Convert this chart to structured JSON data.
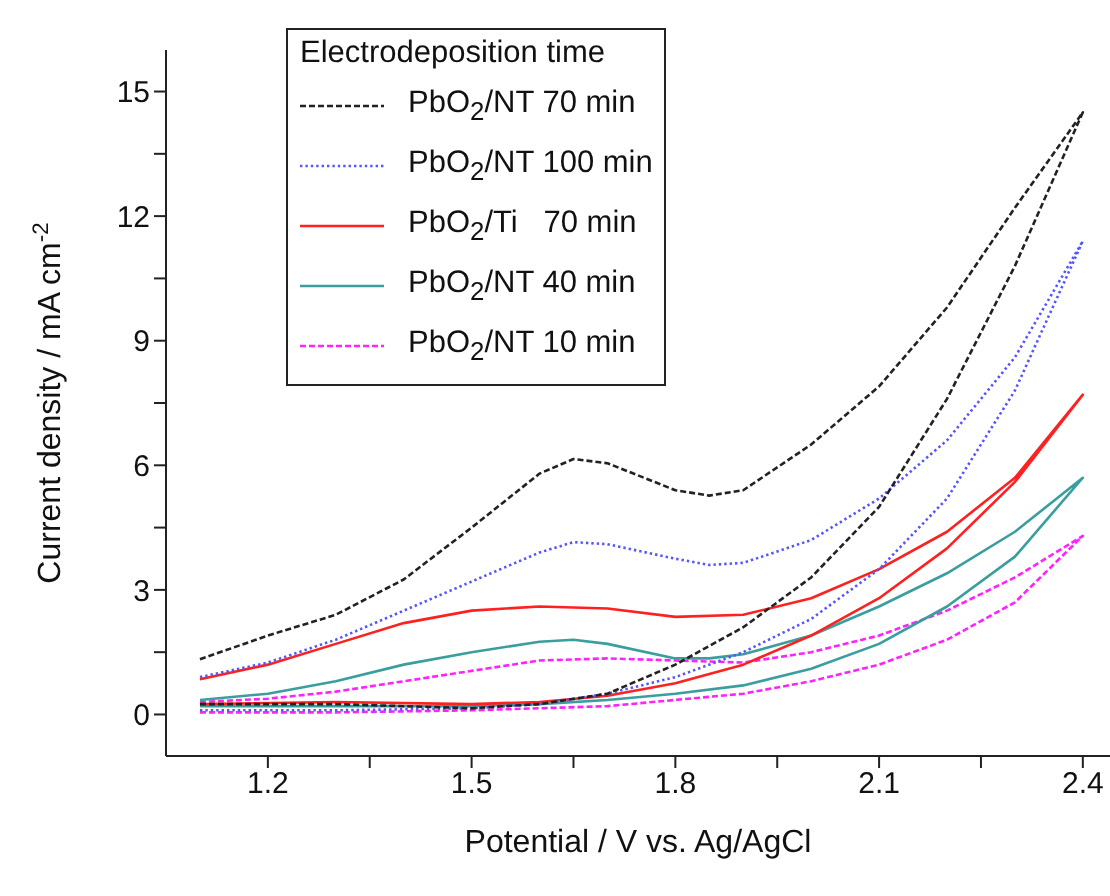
{
  "chart_data": {
    "type": "line",
    "xlabel": "Potential / V vs. Ag/AgCl",
    "ylabel": "Current density / mA cm$^{-2}$",
    "legend_title": "Electrodeposition time",
    "legend": "top left",
    "grid": false,
    "marker": "none",
    "xlim": [
      1.05,
      2.44
    ],
    "xticks": [
      1.2,
      {
        "value": 1.35,
        "label": null
      },
      1.5,
      {
        "value": 1.65,
        "label": null
      },
      1.8,
      {
        "value": 1.95,
        "label": null
      },
      2.1,
      {
        "value": 2.25,
        "label": null
      },
      2.4
    ],
    "ylim": [
      -1,
      16
    ],
    "yticks": [
      0,
      {
        "value": 1.5,
        "label": null
      },
      3,
      {
        "value": 4.5,
        "label": null
      },
      6,
      {
        "value": 7.5,
        "label": null
      },
      9,
      {
        "value": 10.5,
        "label": null
      },
      12,
      {
        "value": 13.5,
        "label": null
      },
      15
    ],
    "series": [
      {
        "name": "PbO$_{2}$/NT 70 min",
        "color": "#222222",
        "line_style": "dashed",
        "x": [
          1.1,
          1.3,
          1.5,
          1.6,
          1.7,
          1.8,
          1.9,
          2.0,
          2.1,
          2.2,
          2.3,
          2.4,
          2.3,
          2.2,
          2.1,
          2.0,
          1.9,
          1.85,
          1.8,
          1.7,
          1.65,
          1.6,
          1.5,
          1.4,
          1.3,
          1.2,
          1.1
        ],
        "values": [
          0.25,
          0.25,
          0.15,
          0.25,
          0.5,
          1.2,
          2.1,
          3.3,
          5.0,
          7.6,
          10.8,
          14.5,
          12.2,
          9.8,
          7.9,
          6.5,
          5.4,
          5.27,
          5.4,
          6.05,
          6.15,
          5.8,
          4.5,
          3.25,
          2.4,
          1.9,
          1.33
        ]
      },
      {
        "name": "PbO$_{2}$/NT 100 min",
        "color": "#5555ff",
        "line_style": "dotted",
        "x": [
          1.1,
          1.3,
          1.5,
          1.6,
          1.7,
          1.8,
          1.9,
          2.0,
          2.1,
          2.2,
          2.3,
          2.4,
          2.3,
          2.2,
          2.1,
          2.0,
          1.9,
          1.85,
          1.8,
          1.7,
          1.65,
          1.6,
          1.5,
          1.4,
          1.3,
          1.2,
          1.1
        ],
        "values": [
          0.1,
          0.1,
          0.15,
          0.25,
          0.5,
          0.9,
          1.5,
          2.3,
          3.5,
          5.2,
          7.8,
          11.4,
          8.6,
          6.6,
          5.2,
          4.2,
          3.65,
          3.6,
          3.75,
          4.1,
          4.15,
          3.9,
          3.2,
          2.5,
          1.8,
          1.25,
          0.9
        ]
      },
      {
        "name": "PbO$_{2}$/Ti   70 min",
        "color": "#ff2020",
        "line_style": "solid",
        "x": [
          1.1,
          1.3,
          1.5,
          1.6,
          1.7,
          1.8,
          1.9,
          2.0,
          2.1,
          2.2,
          2.3,
          2.4,
          2.3,
          2.2,
          2.1,
          2.0,
          1.9,
          1.8,
          1.7,
          1.6,
          1.5,
          1.4,
          1.3,
          1.2,
          1.1
        ],
        "values": [
          0.25,
          0.3,
          0.25,
          0.3,
          0.45,
          0.75,
          1.2,
          1.9,
          2.8,
          4.0,
          5.6,
          7.7,
          5.7,
          4.4,
          3.5,
          2.8,
          2.4,
          2.35,
          2.55,
          2.6,
          2.5,
          2.2,
          1.7,
          1.2,
          0.85
        ]
      },
      {
        "name": "PbO$_{2}$/NT 40 min",
        "color": "#3a9e9e",
        "line_style": "solid",
        "x": [
          1.1,
          1.3,
          1.5,
          1.6,
          1.7,
          1.8,
          1.9,
          2.0,
          2.1,
          2.2,
          2.3,
          2.4,
          2.3,
          2.2,
          2.1,
          2.0,
          1.9,
          1.85,
          1.8,
          1.7,
          1.65,
          1.6,
          1.5,
          1.4,
          1.3,
          1.2,
          1.1
        ],
        "values": [
          0.2,
          0.2,
          0.2,
          0.25,
          0.35,
          0.5,
          0.7,
          1.1,
          1.7,
          2.6,
          3.8,
          5.7,
          4.4,
          3.4,
          2.6,
          1.9,
          1.45,
          1.35,
          1.35,
          1.7,
          1.8,
          1.75,
          1.5,
          1.2,
          0.8,
          0.5,
          0.35
        ]
      },
      {
        "name": "PbO$_{2}$/NT 10 min",
        "color": "#ff22ff",
        "line_style": "dashed",
        "x": [
          1.1,
          1.3,
          1.5,
          1.6,
          1.7,
          1.8,
          1.9,
          2.0,
          2.1,
          2.2,
          2.3,
          2.4,
          2.3,
          2.2,
          2.1,
          2.0,
          1.9,
          1.8,
          1.7,
          1.6,
          1.5,
          1.4,
          1.3,
          1.2,
          1.1
        ],
        "values": [
          0.05,
          0.05,
          0.1,
          0.15,
          0.2,
          0.35,
          0.5,
          0.8,
          1.2,
          1.8,
          2.7,
          4.3,
          3.3,
          2.5,
          1.9,
          1.5,
          1.25,
          1.3,
          1.35,
          1.3,
          1.05,
          0.8,
          0.55,
          0.38,
          0.3
        ]
      }
    ]
  }
}
